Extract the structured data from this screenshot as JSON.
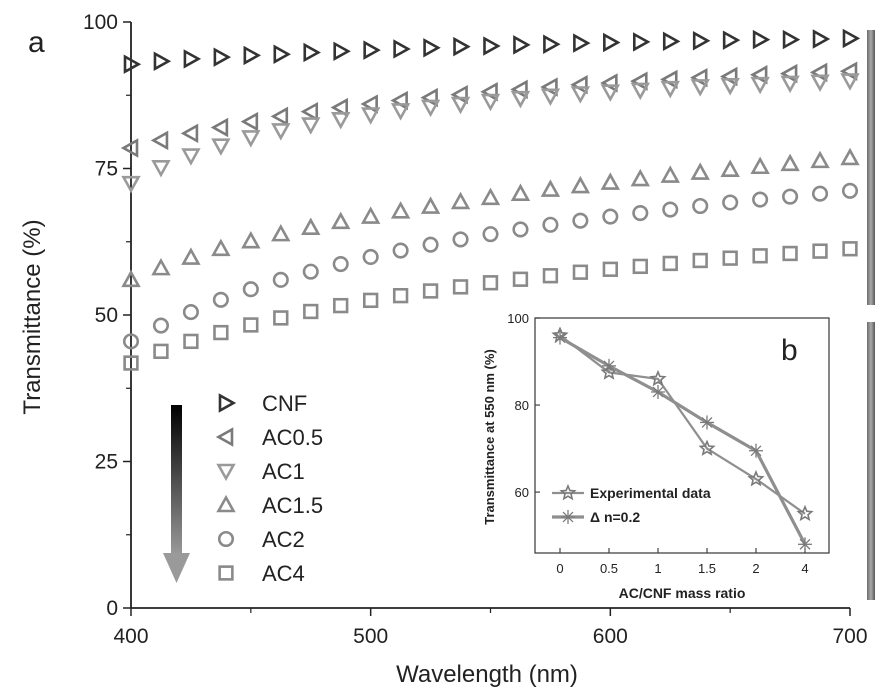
{
  "chart_data": [
    {
      "panel": "a",
      "type": "scatter",
      "xlabel": "Wavelength (nm)",
      "ylabel": "Transmittance (%)",
      "xlim": [
        400,
        700
      ],
      "ylim": [
        0,
        100
      ],
      "xticks": [
        "400",
        "500",
        "600",
        "700"
      ],
      "yticks": [
        "0",
        "25",
        "50",
        "75",
        "100"
      ],
      "legend_position": "lower-left",
      "x": [
        400,
        412.5,
        425,
        437.5,
        450,
        462.5,
        475,
        487.5,
        500,
        512.5,
        525,
        537.5,
        550,
        562.5,
        575,
        587.5,
        600,
        612.5,
        625,
        637.5,
        650,
        662.5,
        675,
        687.5,
        700
      ],
      "series": [
        {
          "name": "CNF",
          "marker": "triangle-right",
          "color": "#333333",
          "values": [
            92.8,
            93.3,
            93.7,
            94.0,
            94.3,
            94.5,
            94.8,
            95.0,
            95.2,
            95.4,
            95.6,
            95.8,
            95.9,
            96.1,
            96.2,
            96.4,
            96.5,
            96.6,
            96.7,
            96.8,
            96.9,
            97.0,
            97.0,
            97.1,
            97.2
          ]
        },
        {
          "name": "AC0.5",
          "marker": "triangle-left",
          "color": "#7a7a7a",
          "values": [
            78.5,
            79.8,
            81.0,
            82.0,
            83.0,
            83.9,
            84.7,
            85.4,
            86.0,
            86.6,
            87.1,
            87.6,
            88.1,
            88.5,
            88.9,
            89.3,
            89.6,
            89.9,
            90.2,
            90.5,
            90.7,
            91.0,
            91.2,
            91.4,
            91.6
          ]
        },
        {
          "name": "AC1",
          "marker": "triangle-down",
          "color": "#9a9a9a",
          "values": [
            72.5,
            75.2,
            77.2,
            78.9,
            80.3,
            81.5,
            82.5,
            83.4,
            84.2,
            84.9,
            85.5,
            86.0,
            86.5,
            87.0,
            87.4,
            87.8,
            88.1,
            88.4,
            88.7,
            89.0,
            89.2,
            89.4,
            89.6,
            89.8,
            90.0
          ]
        },
        {
          "name": "AC1.5",
          "marker": "triangle-up",
          "color": "#8a8a8a",
          "values": [
            56.0,
            58.0,
            59.8,
            61.3,
            62.6,
            63.8,
            64.9,
            65.9,
            66.8,
            67.7,
            68.5,
            69.3,
            70.0,
            70.7,
            71.4,
            72.0,
            72.6,
            73.2,
            73.8,
            74.3,
            74.8,
            75.3,
            75.8,
            76.3,
            76.8
          ]
        },
        {
          "name": "AC2",
          "marker": "circle",
          "color": "#8a8a8a",
          "values": [
            45.5,
            48.2,
            50.5,
            52.6,
            54.4,
            56.0,
            57.4,
            58.7,
            59.9,
            61.0,
            62.0,
            62.9,
            63.8,
            64.6,
            65.4,
            66.1,
            66.8,
            67.4,
            68.0,
            68.6,
            69.2,
            69.7,
            70.2,
            70.7,
            71.2
          ]
        },
        {
          "name": "AC4",
          "marker": "square",
          "color": "#8a8a8a",
          "values": [
            41.8,
            43.8,
            45.5,
            47.0,
            48.3,
            49.5,
            50.6,
            51.6,
            52.5,
            53.3,
            54.1,
            54.8,
            55.5,
            56.1,
            56.7,
            57.3,
            57.8,
            58.3,
            58.8,
            59.3,
            59.7,
            60.1,
            60.5,
            60.9,
            61.3
          ]
        }
      ]
    },
    {
      "panel": "b",
      "type": "line",
      "xlabel": "AC/CNF mass ratio",
      "ylabel": "Transmittance at 550 nm (%)",
      "categories": [
        "0",
        "0.5",
        "1",
        "1.5",
        "2",
        "4"
      ],
      "ylim": [
        46,
        100
      ],
      "yticks": [
        "60",
        "80",
        "100"
      ],
      "legend_position": "lower-left",
      "series": [
        {
          "name": "Experimental data",
          "marker": "star",
          "color": "#8f8f8f",
          "values": [
            96,
            87.5,
            86,
            70,
            63,
            55
          ]
        },
        {
          "name": "Δ n=0.2",
          "marker": "asterisk",
          "color": "#8f8f8f",
          "values": [
            95.5,
            89,
            83,
            76,
            69.5,
            48
          ]
        }
      ]
    }
  ]
}
